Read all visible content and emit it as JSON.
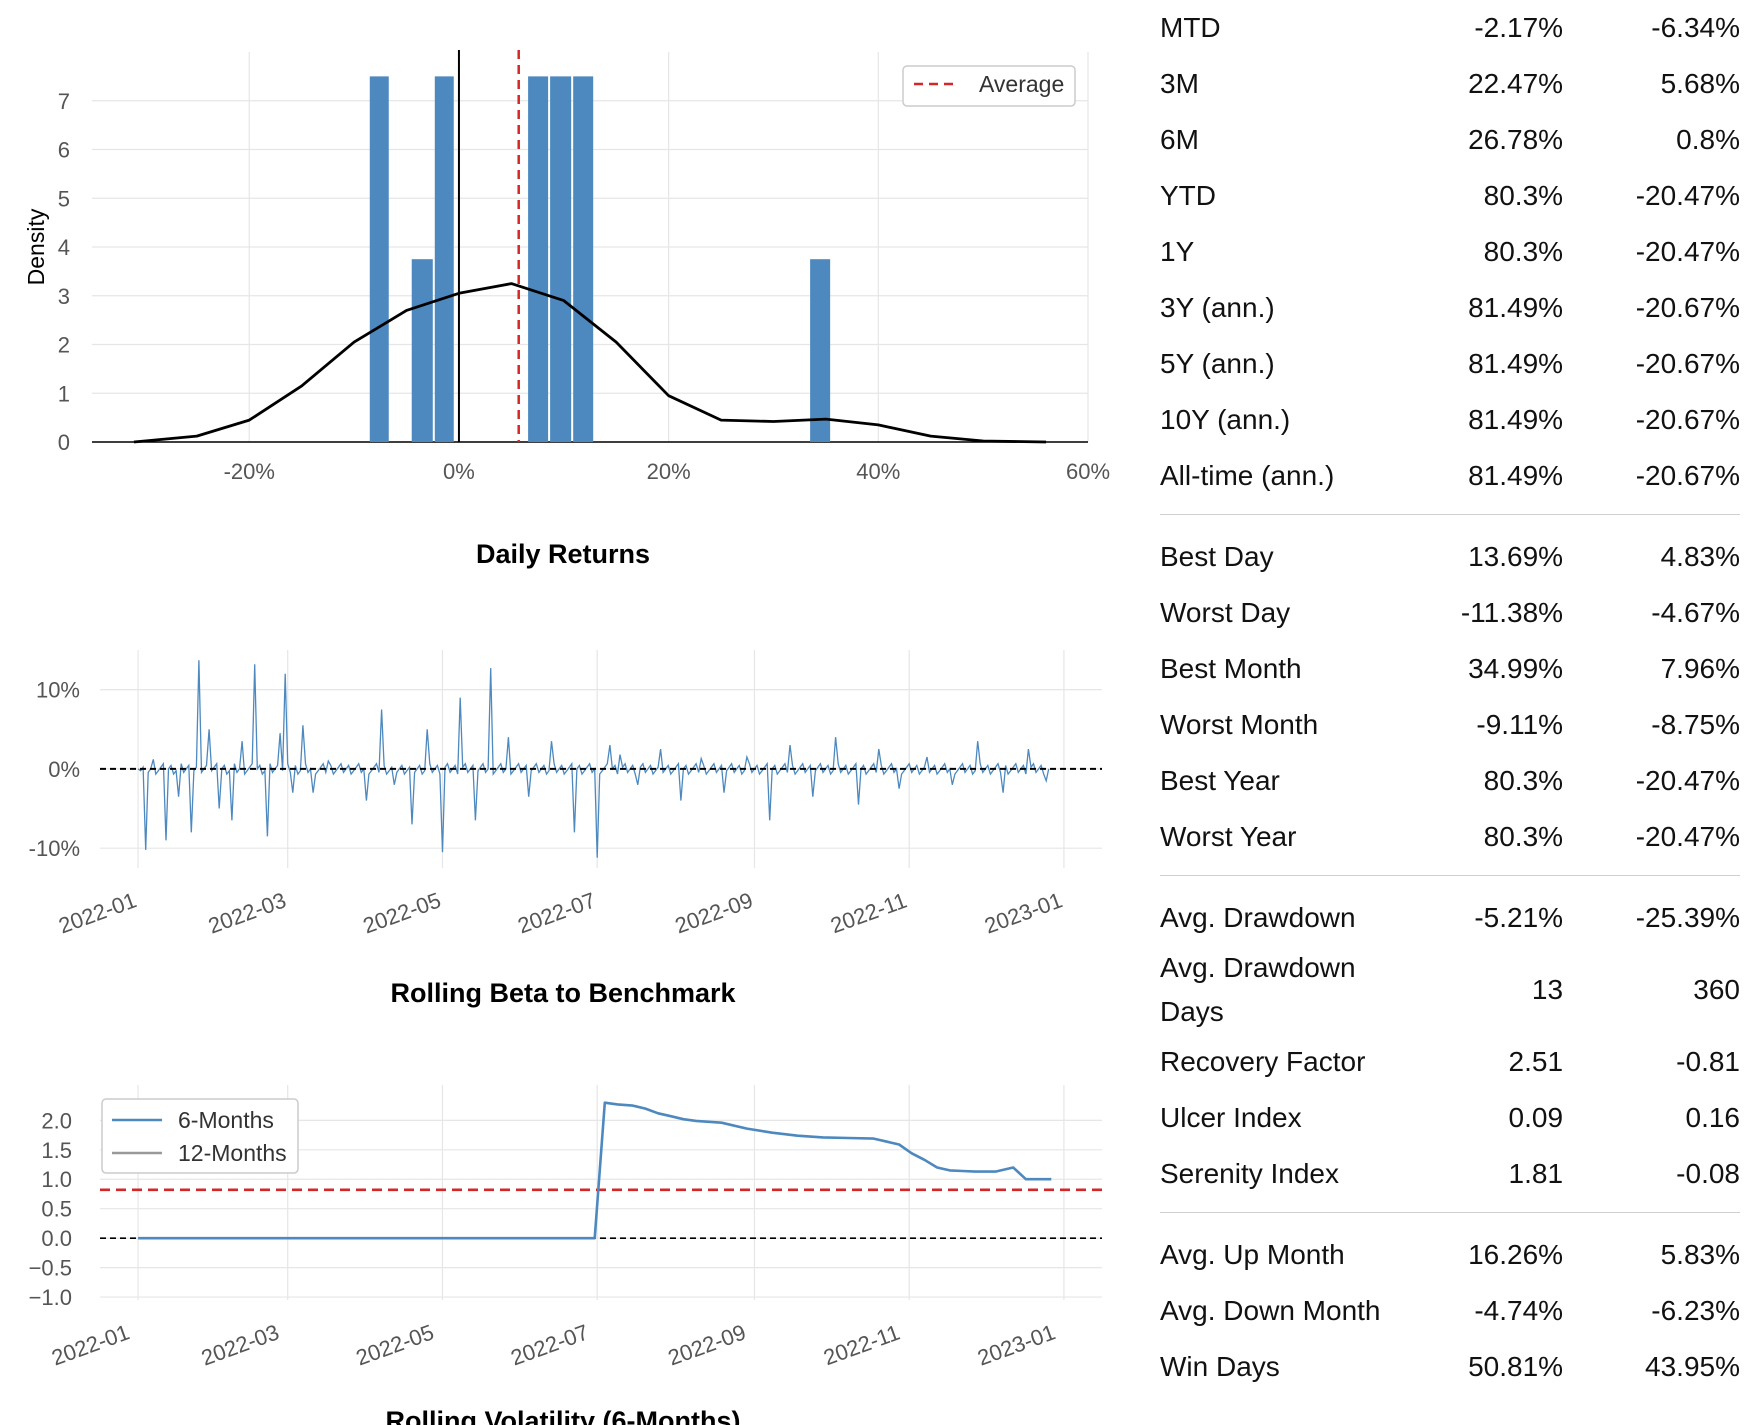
{
  "chart_data": [
    {
      "type": "bar",
      "title": "",
      "xlabel": "",
      "ylabel": "Density",
      "x_ticks": [
        "-20%",
        "0%",
        "20%",
        "40%",
        "60%"
      ],
      "x_tick_values": [
        -20,
        0,
        20,
        40,
        60
      ],
      "y_ticks": [
        "0",
        "1",
        "2",
        "3",
        "4",
        "5",
        "6",
        "7"
      ],
      "xlim": [
        -35,
        60
      ],
      "ylim": [
        0,
        8
      ],
      "bins": [
        {
          "x0": -8.6,
          "x1": -6.6,
          "value": 7.5
        },
        {
          "x0": -4.6,
          "x1": -2.4,
          "value": 3.75
        },
        {
          "x0": -2.4,
          "x1": -0.4,
          "value": 7.5
        },
        {
          "x0": 6.5,
          "x1": 8.6,
          "value": 7.5
        },
        {
          "x0": 8.6,
          "x1": 10.8,
          "value": 7.5
        },
        {
          "x0": 10.8,
          "x1": 12.9,
          "value": 7.5
        },
        {
          "x0": 33.4,
          "x1": 35.5,
          "value": 3.75
        }
      ],
      "kde": {
        "x": [
          -31,
          -25,
          -20,
          -15,
          -10,
          -5,
          0,
          5,
          10,
          15,
          20,
          25,
          30,
          35,
          40,
          45,
          50,
          56
        ],
        "y": [
          0.0,
          0.12,
          0.45,
          1.15,
          2.05,
          2.7,
          3.05,
          3.25,
          2.9,
          2.05,
          0.95,
          0.45,
          0.42,
          0.47,
          0.35,
          0.12,
          0.02,
          0.0
        ]
      },
      "average": 5.7,
      "zero_line": 0,
      "legend": {
        "label": "Average",
        "placement": "top-right"
      },
      "colors": {
        "bars": "#4d89bf",
        "kde": "#000000",
        "average": "#d62728"
      }
    },
    {
      "type": "line",
      "title": "Daily Returns",
      "y_ticks": [
        "10%",
        "0%",
        "-10%"
      ],
      "y_tick_values": [
        10,
        0,
        -10
      ],
      "x_ticks": [
        "2022-01",
        "2022-03",
        "2022-05",
        "2022-07",
        "2022-09",
        "2022-11",
        "2023-01"
      ],
      "x_tick_values": [
        0,
        59,
        120,
        181,
        243,
        304,
        365
      ],
      "xlim": [
        -15,
        380
      ],
      "ylim": [
        -12.5,
        15
      ],
      "spikes": [
        {
          "x": 3,
          "y": -10.2
        },
        {
          "x": 6,
          "y": 1.2
        },
        {
          "x": 11,
          "y": -9.0
        },
        {
          "x": 16,
          "y": -3.5
        },
        {
          "x": 21,
          "y": -8.0
        },
        {
          "x": 24,
          "y": 13.7
        },
        {
          "x": 28,
          "y": 5.0
        },
        {
          "x": 32,
          "y": -5.0
        },
        {
          "x": 37,
          "y": -6.5
        },
        {
          "x": 41,
          "y": 3.5
        },
        {
          "x": 46,
          "y": 13.2
        },
        {
          "x": 51,
          "y": -8.5
        },
        {
          "x": 56,
          "y": 4.5
        },
        {
          "x": 58,
          "y": 12.0
        },
        {
          "x": 61,
          "y": -3.0
        },
        {
          "x": 65,
          "y": 5.5
        },
        {
          "x": 69,
          "y": -3.0
        },
        {
          "x": 75,
          "y": 1.0
        },
        {
          "x": 90,
          "y": -4.0
        },
        {
          "x": 96,
          "y": 7.5
        },
        {
          "x": 101,
          "y": -2.0
        },
        {
          "x": 108,
          "y": -7.0
        },
        {
          "x": 114,
          "y": 5.0
        },
        {
          "x": 120,
          "y": -10.5
        },
        {
          "x": 127,
          "y": 9.0
        },
        {
          "x": 133,
          "y": -6.5
        },
        {
          "x": 139,
          "y": 12.7
        },
        {
          "x": 146,
          "y": 4.0
        },
        {
          "x": 154,
          "y": -3.5
        },
        {
          "x": 163,
          "y": 3.5
        },
        {
          "x": 172,
          "y": -8.0
        },
        {
          "x": 181,
          "y": -11.2
        },
        {
          "x": 186,
          "y": 3.0
        },
        {
          "x": 190,
          "y": 1.8
        },
        {
          "x": 197,
          "y": -2.0
        },
        {
          "x": 206,
          "y": 2.5
        },
        {
          "x": 214,
          "y": -4.0
        },
        {
          "x": 222,
          "y": 1.3
        },
        {
          "x": 231,
          "y": -3.0
        },
        {
          "x": 240,
          "y": 1.5
        },
        {
          "x": 249,
          "y": -6.5
        },
        {
          "x": 257,
          "y": 3.0
        },
        {
          "x": 266,
          "y": -3.5
        },
        {
          "x": 275,
          "y": 4.0
        },
        {
          "x": 284,
          "y": -4.5
        },
        {
          "x": 292,
          "y": 2.5
        },
        {
          "x": 300,
          "y": -2.5
        },
        {
          "x": 311,
          "y": 1.5
        },
        {
          "x": 321,
          "y": -2.0
        },
        {
          "x": 331,
          "y": 3.5
        },
        {
          "x": 341,
          "y": -3.0
        },
        {
          "x": 351,
          "y": 2.5
        },
        {
          "x": 358,
          "y": -1.5
        }
      ],
      "zero_line": 0,
      "colors": {
        "line": "#4d89bf",
        "zero": "#000000"
      }
    },
    {
      "type": "line",
      "title": "Rolling Beta to Benchmark",
      "y_ticks": [
        "2.0",
        "1.5",
        "1.0",
        "0.5",
        "0.0",
        "−0.5",
        "−1.0"
      ],
      "y_tick_values": [
        2.0,
        1.5,
        1.0,
        0.5,
        0.0,
        -0.5,
        -1.0
      ],
      "x_ticks": [
        "2022-01",
        "2022-03",
        "2022-05",
        "2022-07",
        "2022-09",
        "2022-11",
        "2023-01"
      ],
      "x_tick_values": [
        0,
        59,
        120,
        181,
        243,
        304,
        365
      ],
      "xlim": [
        -15,
        380
      ],
      "ylim": [
        -1.05,
        2.6
      ],
      "series": [
        {
          "name": "6-Months",
          "x": [
            0,
            180,
            184,
            189,
            195,
            200,
            205,
            210,
            215,
            220,
            230,
            240,
            250,
            260,
            270,
            280,
            290,
            300,
            305,
            310,
            315,
            320,
            325,
            330,
            338,
            345,
            350,
            355,
            360
          ],
          "y": [
            0,
            0,
            2.3,
            2.27,
            2.25,
            2.2,
            2.12,
            2.07,
            2.02,
            1.99,
            1.96,
            1.86,
            1.79,
            1.74,
            1.71,
            1.7,
            1.69,
            1.59,
            1.44,
            1.33,
            1.2,
            1.15,
            1.14,
            1.13,
            1.13,
            1.2,
            1.0,
            1.0,
            1.0
          ]
        },
        {
          "name": "12-Months",
          "x": [],
          "y": []
        }
      ],
      "reference_lines": {
        "mean": 0.82,
        "zero": 0.0
      },
      "legend": {
        "placement": "top-left"
      },
      "colors": {
        "six_months": "#4d89bf",
        "twelve_months": "#999999",
        "mean": "#d62728",
        "zero": "#000000"
      }
    }
  ],
  "next_chart_title_partial": "Rolling Volatility (6-Months)",
  "metrics": [
    {
      "rows": [
        {
          "label": "MTD",
          "v1": "-2.17%",
          "v2": "-6.34%"
        },
        {
          "label": "3M",
          "v1": "22.47%",
          "v2": "5.68%"
        },
        {
          "label": "6M",
          "v1": "26.78%",
          "v2": "0.8%"
        },
        {
          "label": "YTD",
          "v1": "80.3%",
          "v2": "-20.47%"
        },
        {
          "label": "1Y",
          "v1": "80.3%",
          "v2": "-20.47%"
        },
        {
          "label": "3Y (ann.)",
          "v1": "81.49%",
          "v2": "-20.67%"
        },
        {
          "label": "5Y (ann.)",
          "v1": "81.49%",
          "v2": "-20.67%"
        },
        {
          "label": "10Y (ann.)",
          "v1": "81.49%",
          "v2": "-20.67%"
        },
        {
          "label": "All-time (ann.)",
          "v1": "81.49%",
          "v2": "-20.67%"
        }
      ]
    },
    {
      "rows": [
        {
          "label": "Best Day",
          "v1": "13.69%",
          "v2": "4.83%"
        },
        {
          "label": "Worst Day",
          "v1": "-11.38%",
          "v2": "-4.67%"
        },
        {
          "label": "Best Month",
          "v1": "34.99%",
          "v2": "7.96%"
        },
        {
          "label": "Worst Month",
          "v1": "-9.11%",
          "v2": "-8.75%"
        },
        {
          "label": "Best Year",
          "v1": "80.3%",
          "v2": "-20.47%"
        },
        {
          "label": "Worst Year",
          "v1": "80.3%",
          "v2": "-20.47%"
        }
      ]
    },
    {
      "rows": [
        {
          "label": "Avg. Drawdown",
          "v1": "-5.21%",
          "v2": "-25.39%"
        },
        {
          "label": "Avg. Drawdown Days",
          "v1": "13",
          "v2": "360"
        },
        {
          "label": "Recovery Factor",
          "v1": "2.51",
          "v2": "-0.81"
        },
        {
          "label": "Ulcer Index",
          "v1": "0.09",
          "v2": "0.16"
        },
        {
          "label": "Serenity Index",
          "v1": "1.81",
          "v2": "-0.08"
        }
      ]
    },
    {
      "rows": [
        {
          "label": "Avg. Up Month",
          "v1": "16.26%",
          "v2": "5.83%"
        },
        {
          "label": "Avg. Down Month",
          "v1": "-4.74%",
          "v2": "-6.23%"
        },
        {
          "label": "Win Days",
          "v1": "50.81%",
          "v2": "43.95%"
        }
      ]
    }
  ]
}
